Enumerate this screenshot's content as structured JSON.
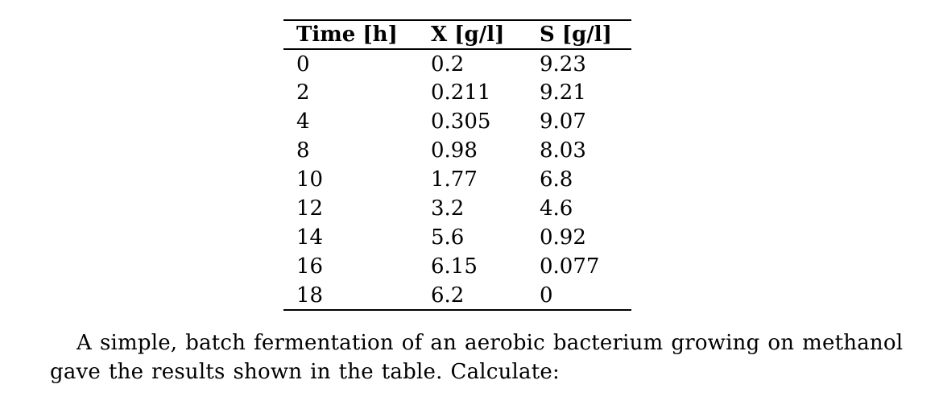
{
  "page": {
    "background_color": "#ffffff",
    "text_color": "#000000"
  },
  "table": {
    "columns": [
      "Time [h]",
      "X [g/l]",
      "S [g/l]"
    ],
    "rows": [
      [
        "0",
        "0.2",
        "9.23"
      ],
      [
        "2",
        "0.211",
        "9.21"
      ],
      [
        "4",
        "0.305",
        "9.07"
      ],
      [
        "8",
        "0.98",
        "8.03"
      ],
      [
        "10",
        "1.77",
        "6.8"
      ],
      [
        "12",
        "3.2",
        "4.6"
      ],
      [
        "14",
        "5.6",
        "0.92"
      ],
      [
        "16",
        "6.15",
        "0.077"
      ],
      [
        "18",
        "6.2",
        "0"
      ]
    ]
  },
  "paragraph": {
    "line1": "A simple, batch fermentation of an aerobic bacterium growing on methanol",
    "line2": "gave the results shown in the table. Calculate:"
  }
}
